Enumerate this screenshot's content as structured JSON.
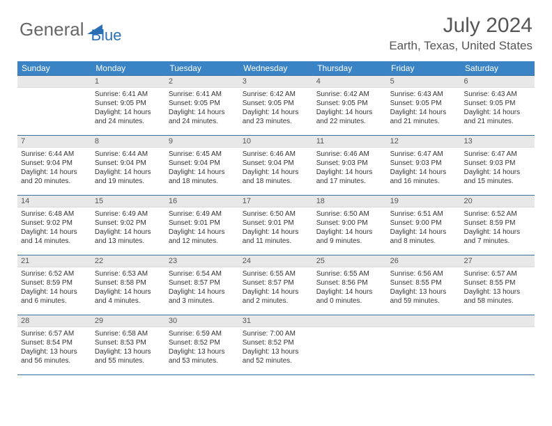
{
  "logo": {
    "part1": "General",
    "part2": "Blue"
  },
  "title": "July 2024",
  "location": "Earth, Texas, United States",
  "colors": {
    "header_bg": "#3a84c6",
    "header_text": "#ffffff",
    "daynum_bg": "#e8e8e8",
    "border": "#3a6f9f",
    "logo_gray": "#666666",
    "logo_blue": "#2a6fb5",
    "text": "#333333"
  },
  "day_headers": [
    "Sunday",
    "Monday",
    "Tuesday",
    "Wednesday",
    "Thursday",
    "Friday",
    "Saturday"
  ],
  "grid": {
    "start_weekday": 1,
    "days_in_month": 31
  },
  "days": {
    "1": {
      "sunrise": "6:41 AM",
      "sunset": "9:05 PM",
      "daylight": "14 hours and 24 minutes."
    },
    "2": {
      "sunrise": "6:41 AM",
      "sunset": "9:05 PM",
      "daylight": "14 hours and 24 minutes."
    },
    "3": {
      "sunrise": "6:42 AM",
      "sunset": "9:05 PM",
      "daylight": "14 hours and 23 minutes."
    },
    "4": {
      "sunrise": "6:42 AM",
      "sunset": "9:05 PM",
      "daylight": "14 hours and 22 minutes."
    },
    "5": {
      "sunrise": "6:43 AM",
      "sunset": "9:05 PM",
      "daylight": "14 hours and 21 minutes."
    },
    "6": {
      "sunrise": "6:43 AM",
      "sunset": "9:05 PM",
      "daylight": "14 hours and 21 minutes."
    },
    "7": {
      "sunrise": "6:44 AM",
      "sunset": "9:04 PM",
      "daylight": "14 hours and 20 minutes."
    },
    "8": {
      "sunrise": "6:44 AM",
      "sunset": "9:04 PM",
      "daylight": "14 hours and 19 minutes."
    },
    "9": {
      "sunrise": "6:45 AM",
      "sunset": "9:04 PM",
      "daylight": "14 hours and 18 minutes."
    },
    "10": {
      "sunrise": "6:46 AM",
      "sunset": "9:04 PM",
      "daylight": "14 hours and 18 minutes."
    },
    "11": {
      "sunrise": "6:46 AM",
      "sunset": "9:03 PM",
      "daylight": "14 hours and 17 minutes."
    },
    "12": {
      "sunrise": "6:47 AM",
      "sunset": "9:03 PM",
      "daylight": "14 hours and 16 minutes."
    },
    "13": {
      "sunrise": "6:47 AM",
      "sunset": "9:03 PM",
      "daylight": "14 hours and 15 minutes."
    },
    "14": {
      "sunrise": "6:48 AM",
      "sunset": "9:02 PM",
      "daylight": "14 hours and 14 minutes."
    },
    "15": {
      "sunrise": "6:49 AM",
      "sunset": "9:02 PM",
      "daylight": "14 hours and 13 minutes."
    },
    "16": {
      "sunrise": "6:49 AM",
      "sunset": "9:01 PM",
      "daylight": "14 hours and 12 minutes."
    },
    "17": {
      "sunrise": "6:50 AM",
      "sunset": "9:01 PM",
      "daylight": "14 hours and 11 minutes."
    },
    "18": {
      "sunrise": "6:50 AM",
      "sunset": "9:00 PM",
      "daylight": "14 hours and 9 minutes."
    },
    "19": {
      "sunrise": "6:51 AM",
      "sunset": "9:00 PM",
      "daylight": "14 hours and 8 minutes."
    },
    "20": {
      "sunrise": "6:52 AM",
      "sunset": "8:59 PM",
      "daylight": "14 hours and 7 minutes."
    },
    "21": {
      "sunrise": "6:52 AM",
      "sunset": "8:59 PM",
      "daylight": "14 hours and 6 minutes."
    },
    "22": {
      "sunrise": "6:53 AM",
      "sunset": "8:58 PM",
      "daylight": "14 hours and 4 minutes."
    },
    "23": {
      "sunrise": "6:54 AM",
      "sunset": "8:57 PM",
      "daylight": "14 hours and 3 minutes."
    },
    "24": {
      "sunrise": "6:55 AM",
      "sunset": "8:57 PM",
      "daylight": "14 hours and 2 minutes."
    },
    "25": {
      "sunrise": "6:55 AM",
      "sunset": "8:56 PM",
      "daylight": "14 hours and 0 minutes."
    },
    "26": {
      "sunrise": "6:56 AM",
      "sunset": "8:55 PM",
      "daylight": "13 hours and 59 minutes."
    },
    "27": {
      "sunrise": "6:57 AM",
      "sunset": "8:55 PM",
      "daylight": "13 hours and 58 minutes."
    },
    "28": {
      "sunrise": "6:57 AM",
      "sunset": "8:54 PM",
      "daylight": "13 hours and 56 minutes."
    },
    "29": {
      "sunrise": "6:58 AM",
      "sunset": "8:53 PM",
      "daylight": "13 hours and 55 minutes."
    },
    "30": {
      "sunrise": "6:59 AM",
      "sunset": "8:52 PM",
      "daylight": "13 hours and 53 minutes."
    },
    "31": {
      "sunrise": "7:00 AM",
      "sunset": "8:52 PM",
      "daylight": "13 hours and 52 minutes."
    }
  },
  "labels": {
    "sunrise": "Sunrise:",
    "sunset": "Sunset:",
    "daylight": "Daylight:"
  }
}
